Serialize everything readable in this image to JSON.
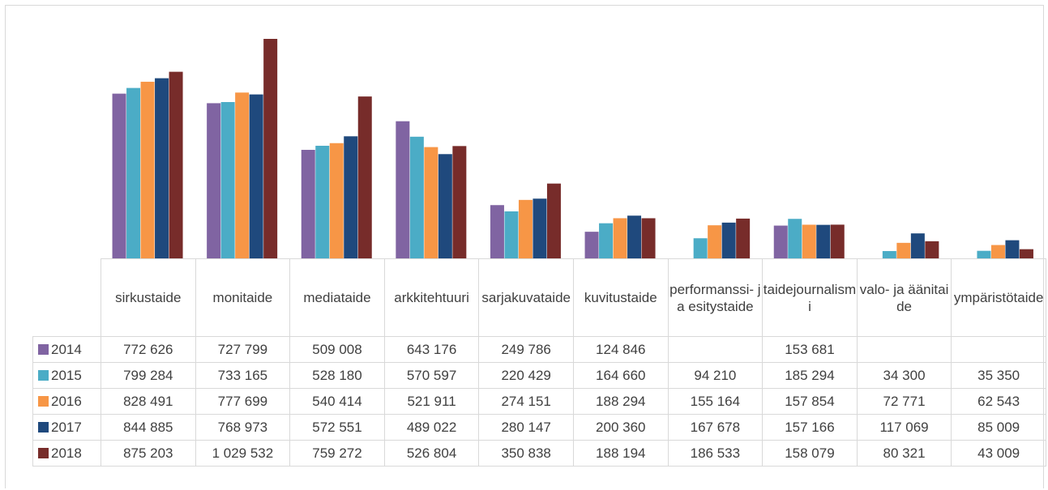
{
  "chart_data": {
    "type": "bar",
    "title": "",
    "xlabel": "",
    "ylabel": "",
    "ylim": [
      0,
      1100000
    ],
    "grid": false,
    "legend": "data-table",
    "categories": [
      "sirkustaide",
      "monitaide",
      "mediataide",
      "arkkitehtuuri",
      "sarjakuvataide",
      "kuvitustaide",
      "performanssi- ja esitystaide",
      "taidejournalismi",
      "valo- ja äänitaide",
      "ympäristötaide"
    ],
    "series": [
      {
        "name": "2014",
        "color": "#8064a2",
        "values": [
          772626,
          727799,
          509008,
          643176,
          249786,
          124846,
          null,
          153681,
          null,
          null
        ],
        "labels": [
          "772 626",
          "727 799",
          "509 008",
          "643 176",
          "249 786",
          "124 846",
          "",
          "153 681",
          "",
          ""
        ]
      },
      {
        "name": "2015",
        "color": "#4bacc6",
        "values": [
          799284,
          733165,
          528180,
          570597,
          220429,
          164660,
          94210,
          185294,
          34300,
          35350
        ],
        "labels": [
          "799 284",
          "733 165",
          "528 180",
          "570 597",
          "220 429",
          "164 660",
          "94 210",
          "185 294",
          "34 300",
          "35 350"
        ]
      },
      {
        "name": "2016",
        "color": "#f79646",
        "values": [
          828491,
          777699,
          540414,
          521911,
          274151,
          188294,
          155164,
          157854,
          72771,
          62543
        ],
        "labels": [
          "828 491",
          "777 699",
          "540 414",
          "521 911",
          "274 151",
          "188 294",
          "155 164",
          "157 854",
          "72 771",
          "62 543"
        ]
      },
      {
        "name": "2017",
        "color": "#1f497d",
        "values": [
          844885,
          768973,
          572551,
          489022,
          280147,
          200360,
          167678,
          157166,
          117069,
          85009
        ],
        "labels": [
          "844 885",
          "768 973",
          "572 551",
          "489 022",
          "280 147",
          "200 360",
          "167 678",
          "157 166",
          "117 069",
          "85 009"
        ]
      },
      {
        "name": "2018",
        "color": "#772c2a",
        "values": [
          875203,
          1029532,
          759272,
          526804,
          350838,
          188194,
          186533,
          158079,
          80321,
          43009
        ],
        "labels": [
          "875 203",
          "1 029 532",
          "759 272",
          "526 804",
          "350 838",
          "188 194",
          "186 533",
          "158 079",
          "80 321",
          "43 009"
        ]
      }
    ]
  }
}
